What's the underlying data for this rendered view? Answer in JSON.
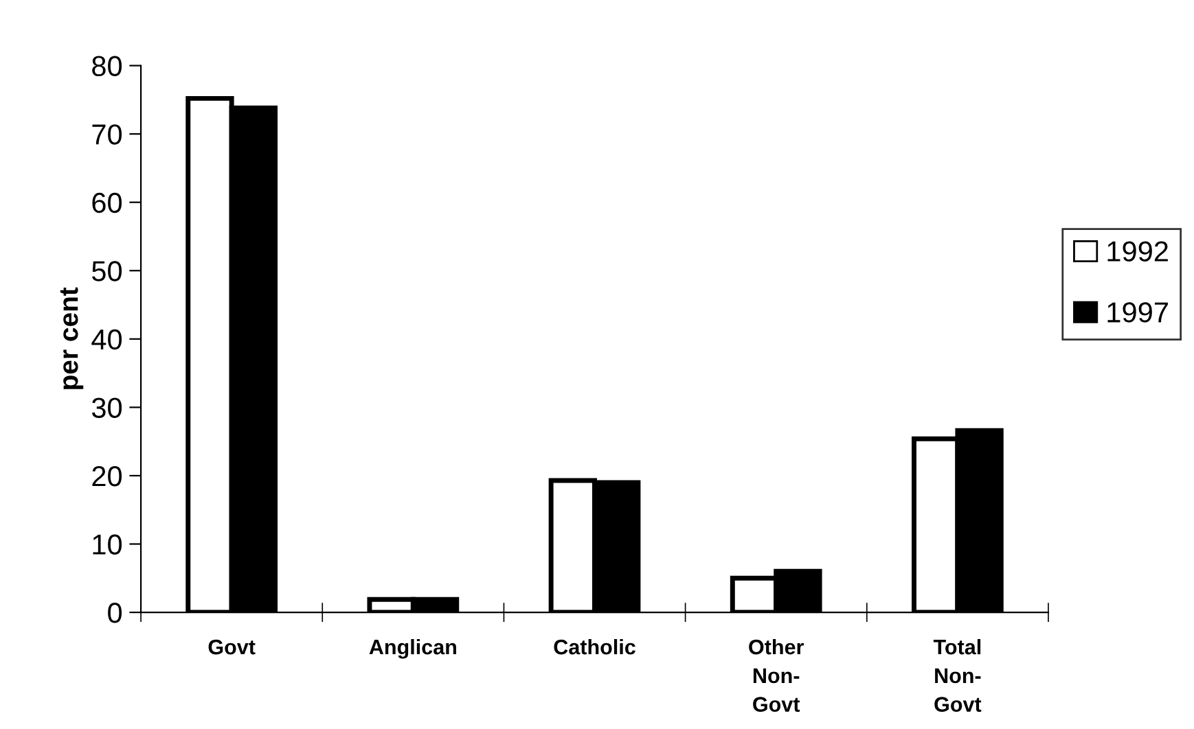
{
  "chart_data": {
    "type": "bar",
    "categories": [
      "Govt",
      "Anglican",
      "Catholic",
      "Other\nNon-\nGovt",
      "Total\nNon-\nGovt"
    ],
    "series": [
      {
        "name": "1992",
        "color": "#ffffff",
        "values": [
          75.2,
          1.9,
          19.3,
          5.0,
          25.4
        ]
      },
      {
        "name": "1997",
        "color": "#000000",
        "values": [
          73.8,
          1.9,
          19.0,
          6.0,
          26.6
        ]
      }
    ],
    "ylabel": "per cent",
    "ylim": [
      0,
      80
    ],
    "yticks": [
      0,
      10,
      20,
      30,
      40,
      50,
      60,
      70,
      80
    ],
    "grid": false,
    "legend": "right"
  }
}
